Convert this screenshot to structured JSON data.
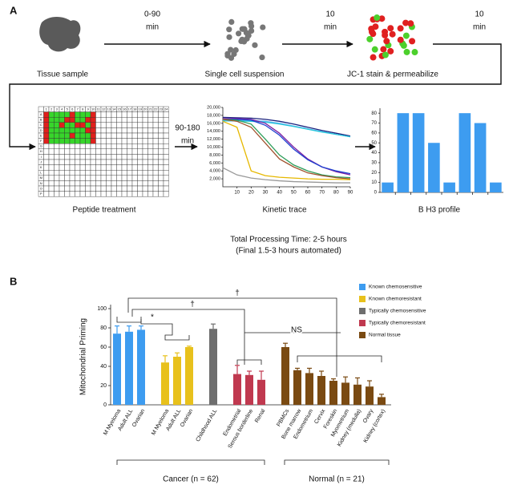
{
  "panel_a": {
    "label": "A",
    "steps": [
      "Tissue sample",
      "Single cell suspension",
      "JC-1 stain & permeabilize",
      "Peptide treatment",
      "Kinetic trace",
      "B H3 profile"
    ],
    "times": [
      [
        "0-90",
        "min"
      ],
      [
        "10",
        "min"
      ],
      [
        "10",
        "min"
      ],
      [
        "90-180",
        "min"
      ]
    ],
    "plate_columns": [
      "1",
      "2",
      "3",
      "4",
      "5",
      "6",
      "7",
      "8",
      "9",
      "10",
      "11",
      "12",
      "13",
      "14",
      "15",
      "16",
      "17",
      "18",
      "19",
      "20",
      "21",
      "22",
      "23",
      "24"
    ],
    "plate_rows": [
      "A",
      "B",
      "C",
      "D",
      "E",
      "F",
      "G",
      "H",
      "I",
      "J",
      "K",
      "L",
      "M",
      "N",
      "O",
      "P"
    ],
    "total_time": "Total Processing Time: 2-5 hours",
    "automated_time": "(Final 1.5-3 hours automated)"
  },
  "panel_b": {
    "label": "B"
  },
  "chart_data": [
    {
      "type": "line",
      "x": [
        0,
        10,
        20,
        30,
        40,
        50,
        60,
        70,
        80,
        90
      ],
      "xlim": [
        0,
        90
      ],
      "xticks": [
        10,
        20,
        30,
        40,
        50,
        60,
        70,
        80,
        90
      ],
      "ylim": [
        0,
        20000
      ],
      "yticks": [
        {
          "value": 2000,
          "label": "2,000"
        },
        {
          "value": 4000,
          "label": "4,000"
        },
        {
          "value": 6000,
          "label": "6,000"
        },
        {
          "value": 8000,
          "label": "8,000"
        },
        {
          "value": 10000,
          "label": "10,000"
        },
        {
          "value": 12000,
          "label": "12,000"
        },
        {
          "value": 14000,
          "label": "14,000"
        },
        {
          "value": 16000,
          "label": "16,000"
        },
        {
          "value": 18000,
          "label": "18,000"
        },
        {
          "value": 20000,
          "label": "20,000"
        }
      ],
      "grid": false,
      "series": [
        {
          "color": "#1a237e",
          "values": [
            17500,
            17400,
            17300,
            17000,
            16500,
            15800,
            15000,
            14200,
            13500,
            12800
          ]
        },
        {
          "color": "#64b5f6",
          "values": [
            16800,
            16800,
            16700,
            16500,
            16000,
            15300,
            14600,
            13900,
            13200,
            12600
          ]
        },
        {
          "color": "#26c6da",
          "values": [
            16600,
            16600,
            16500,
            16300,
            15800,
            15200,
            14500,
            13800,
            13200,
            12600
          ]
        },
        {
          "color": "#7b1fa2",
          "values": [
            17200,
            17200,
            17000,
            16000,
            13500,
            10000,
            7000,
            5000,
            3800,
            3000
          ]
        },
        {
          "color": "#1e40d0",
          "values": [
            17000,
            17000,
            16800,
            15500,
            13000,
            9500,
            6800,
            5000,
            4000,
            3300
          ]
        },
        {
          "color": "#2e9e5b",
          "values": [
            17000,
            16800,
            15800,
            12000,
            8000,
            5500,
            4000,
            3000,
            2500,
            2300
          ]
        },
        {
          "color": "#a0522d",
          "values": [
            17000,
            16500,
            15000,
            11000,
            7000,
            5000,
            3500,
            2800,
            2300,
            2000
          ]
        },
        {
          "color": "#e6b800",
          "values": [
            16500,
            15000,
            4000,
            2800,
            2400,
            2200,
            2000,
            1900,
            1900,
            1800
          ]
        },
        {
          "color": "#999999",
          "values": [
            4800,
            3000,
            2200,
            1800,
            1500,
            1300,
            1200,
            1100,
            1000,
            1000
          ]
        }
      ]
    },
    {
      "type": "bar",
      "values": [
        10,
        80,
        80,
        50,
        10,
        80,
        70,
        10
      ],
      "color": "#3d9cf0",
      "ylim": [
        0,
        85
      ],
      "yticks": [
        0,
        10,
        20,
        30,
        40,
        50,
        60,
        70,
        80
      ]
    },
    {
      "type": "bar",
      "y_label": "Mitochondrial Priming",
      "ylim": [
        0,
        100
      ],
      "yticks": [
        0,
        20,
        40,
        60,
        80,
        100
      ],
      "legend": "right",
      "categories": [
        "M Myeloma",
        "Adult ALL",
        "Ovarian",
        "M Myeloma",
        "Adult ALL",
        "Ovarian",
        "Childhood ALL",
        "Endometrial",
        "Serous borderline",
        "Renal",
        "PBMCs",
        "Bone marrow",
        "Endometrium",
        "Cervix",
        "Foreskin",
        "Myometrium",
        "Kidney (medulla)",
        "Ovary",
        "Kidney (cortex)"
      ],
      "series": [
        {
          "name": "Known chemosensitive",
          "color": "#3d9cf0",
          "values": [
            74,
            76,
            78,
            null,
            null,
            null,
            null,
            null,
            null,
            null,
            null,
            null,
            null,
            null,
            null,
            null,
            null,
            null,
            null
          ],
          "errors": [
            8,
            6,
            4,
            null,
            null,
            null,
            null,
            null,
            null,
            null,
            null,
            null,
            null,
            null,
            null,
            null,
            null,
            null,
            null
          ]
        },
        {
          "name": "Known chemoresistant",
          "color": "#e8c11c",
          "values": [
            null,
            null,
            null,
            44,
            50,
            60,
            null,
            null,
            null,
            null,
            null,
            null,
            null,
            null,
            null,
            null,
            null,
            null,
            null
          ],
          "errors": [
            null,
            null,
            null,
            7,
            4,
            1,
            null,
            null,
            null,
            null,
            null,
            null,
            null,
            null,
            null,
            null,
            null,
            null,
            null
          ]
        },
        {
          "name": "Typically chemosensitive",
          "color": "#6e6e6e",
          "values": [
            null,
            null,
            null,
            null,
            null,
            null,
            79,
            null,
            null,
            null,
            null,
            null,
            null,
            null,
            null,
            null,
            null,
            null,
            null
          ],
          "errors": [
            null,
            null,
            null,
            null,
            null,
            null,
            5,
            null,
            null,
            null,
            null,
            null,
            null,
            null,
            null,
            null,
            null,
            null,
            null
          ]
        },
        {
          "name": "Typically chemoresistant",
          "color": "#c0394f",
          "values": [
            null,
            null,
            null,
            null,
            null,
            null,
            null,
            32,
            31,
            26,
            null,
            null,
            null,
            null,
            null,
            null,
            null,
            null,
            null
          ],
          "errors": [
            null,
            null,
            null,
            null,
            null,
            null,
            null,
            9,
            4,
            9,
            null,
            null,
            null,
            null,
            null,
            null,
            null,
            null,
            null
          ]
        },
        {
          "name": "Normal tissue",
          "color": "#7a4a12",
          "values": [
            null,
            null,
            null,
            null,
            null,
            null,
            null,
            null,
            null,
            null,
            60,
            36,
            33,
            30,
            25,
            23,
            21,
            19,
            8
          ],
          "errors": [
            null,
            null,
            null,
            null,
            null,
            null,
            null,
            null,
            null,
            null,
            4,
            2,
            5,
            5,
            2,
            6,
            7,
            6,
            3
          ]
        }
      ],
      "annotations": [
        "†",
        "†",
        "*",
        "NS"
      ],
      "group_labels": [
        "Cancer (n = 62)",
        "Normal (n = 21)"
      ]
    }
  ]
}
